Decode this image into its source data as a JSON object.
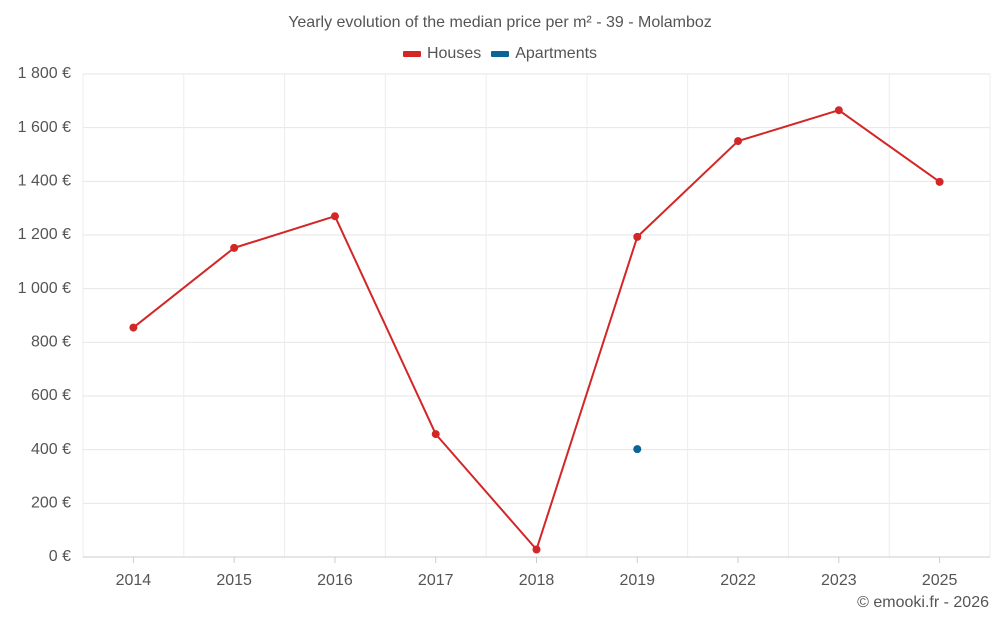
{
  "chart_data": {
    "type": "line",
    "title": "Yearly evolution of the median price per m² - 39 - Molamboz",
    "categories": [
      "2014",
      "2015",
      "2016",
      "2017",
      "2018",
      "2019",
      "2022",
      "2023",
      "2025"
    ],
    "series": [
      {
        "name": "Houses",
        "color": "#d32626",
        "values": [
          855,
          1152,
          1270,
          458,
          28,
          1193,
          1550,
          1665,
          1398
        ]
      },
      {
        "name": "Apartments",
        "color": "#0a6496",
        "values": [
          null,
          null,
          null,
          null,
          null,
          402,
          null,
          null,
          null
        ]
      }
    ],
    "ylim": [
      0,
      1800
    ],
    "yticks": [
      0,
      200,
      400,
      600,
      800,
      1000,
      1200,
      1400,
      1600,
      1800
    ],
    "ytick_labels": [
      "0 €",
      "200 €",
      "400 €",
      "600 €",
      "800 €",
      "1 000 €",
      "1 200 €",
      "1 400 €",
      "1 600 €",
      "1 800 €"
    ],
    "xlabel": "",
    "ylabel": "",
    "grid": true,
    "legend_position": "top-center"
  },
  "footer": {
    "credit": "© emooki.fr - 2026"
  }
}
